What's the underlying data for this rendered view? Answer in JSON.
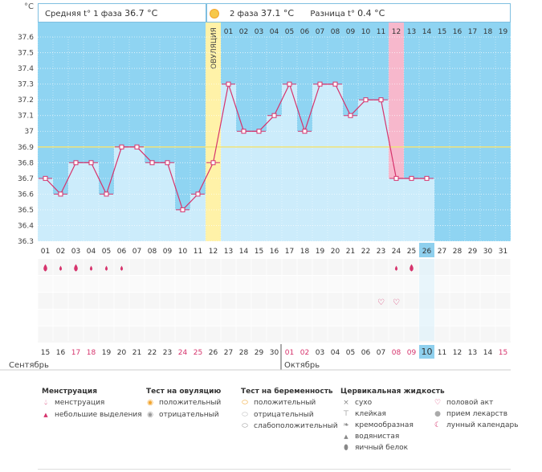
{
  "header": {
    "unit_label": "°C",
    "phase1_label": "Средняя t° 1 фаза",
    "phase1_value": "36.7 °C",
    "phase2_label": "2 фаза",
    "phase2_value": "37.1 °C",
    "diff_label": "Разница t°",
    "diff_value": "0.4 °C"
  },
  "chart_data": {
    "type": "line",
    "y_ticks": [
      "37.6",
      "37.5",
      "37.4",
      "37.3",
      "37.2",
      "37.1",
      "37",
      "36.9",
      "36.8",
      "36.7",
      "36.6",
      "36.5",
      "36.4",
      "36.3"
    ],
    "ylim": [
      36.3,
      37.6
    ],
    "cycle_days": [
      "01",
      "02",
      "03",
      "04",
      "05",
      "06",
      "07",
      "08",
      "09",
      "10",
      "11",
      "12",
      "13",
      "14",
      "15",
      "16",
      "17",
      "18",
      "19",
      "20",
      "21",
      "22",
      "23",
      "24",
      "25",
      "26",
      "27",
      "28",
      "29",
      "30",
      "31"
    ],
    "temperatures": [
      36.7,
      36.6,
      36.8,
      36.8,
      36.6,
      36.9,
      36.9,
      36.8,
      36.8,
      36.5,
      36.6,
      36.8,
      37.3,
      37.0,
      37.0,
      37.1,
      37.3,
      37.0,
      37.3,
      37.3,
      37.1,
      37.2,
      37.2,
      36.7,
      36.7,
      36.7
    ],
    "coverline": 36.9,
    "ovulation_day": 12,
    "ovulation_label": "ОВУЛЯЦИЯ",
    "phase2_days": [
      "01",
      "02",
      "03",
      "04",
      "05",
      "06",
      "07",
      "08",
      "09",
      "10",
      "11",
      "12",
      "13",
      "14",
      "15",
      "16",
      "17",
      "18",
      "19"
    ],
    "highlight_phase2_day": 12,
    "current_day": 26,
    "menstruation": {
      "heavy_days": [
        1,
        3,
        25
      ],
      "light_days": [
        2,
        4,
        5,
        6,
        24
      ]
    },
    "intercourse_days": [
      23,
      24
    ],
    "calendar_dates": [
      "15",
      "16",
      "17",
      "18",
      "19",
      "20",
      "21",
      "22",
      "23",
      "24",
      "25",
      "26",
      "27",
      "28",
      "29",
      "30",
      "01",
      "02",
      "03",
      "04",
      "05",
      "06",
      "07",
      "08",
      "09",
      "10",
      "11",
      "12",
      "13",
      "14",
      "15"
    ],
    "weekend_dates_idx": [
      2,
      3,
      9,
      10,
      16,
      17,
      23,
      24,
      30
    ],
    "months": [
      "Сентябрь",
      "Октябрь"
    ],
    "colors": {
      "blue_bg": "#8fd4f2",
      "bar": "#ccecfb",
      "line": "#d6336c",
      "ovulation": "#fff2a8",
      "highlight": "#f7b8cc",
      "coverline": "#f0e37a",
      "current": "#8fd0ee"
    }
  },
  "legend": {
    "menstruation": {
      "title": "Менструация",
      "items": [
        "менструация",
        "небольшие выделения"
      ]
    },
    "ovulation_test": {
      "title": "Тест на овуляцию",
      "items": [
        "положительный",
        "отрицательный"
      ]
    },
    "pregnancy_test": {
      "title": "Тест на беременность",
      "items": [
        "положительный",
        "отрицательный",
        "слабоположительный"
      ]
    },
    "cervical": {
      "title": "Цервикальная жидкость",
      "items": [
        "сухо",
        "клейкая",
        "кремообразная",
        "водянистая",
        "яичный белок"
      ]
    },
    "other": {
      "items": [
        "половой акт",
        "прием лекарств",
        "лунный календарь"
      ]
    }
  }
}
